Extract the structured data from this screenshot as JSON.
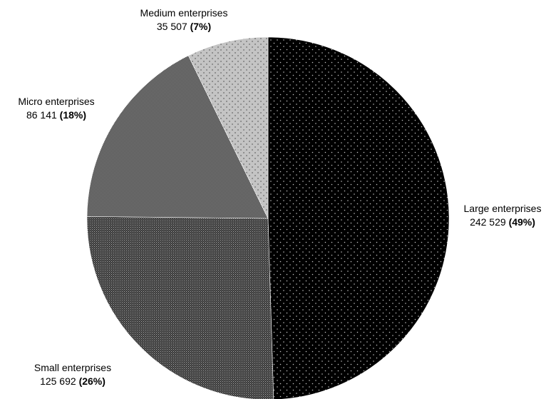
{
  "chart_data": {
    "type": "pie",
    "start_angle_deg": 0,
    "direction": "clockwise",
    "slices": [
      {
        "label": "Large enterprises",
        "value_text": "242 529",
        "pct_text": "(49%)",
        "value": 242529,
        "pattern": "dots-on-black"
      },
      {
        "label": "Small enterprises",
        "value_text": "125 692",
        "pct_text": "(26%)",
        "value": 125692,
        "pattern": "fine-dark"
      },
      {
        "label": "Micro enterprises",
        "value_text": "86 141",
        "pct_text": "(18%)",
        "value": 86141,
        "pattern": "checker-mid"
      },
      {
        "label": "Medium enterprises",
        "value_text": "35 507",
        "pct_text": "(7%)",
        "value": 35507,
        "pattern": "dots-on-light"
      }
    ]
  }
}
